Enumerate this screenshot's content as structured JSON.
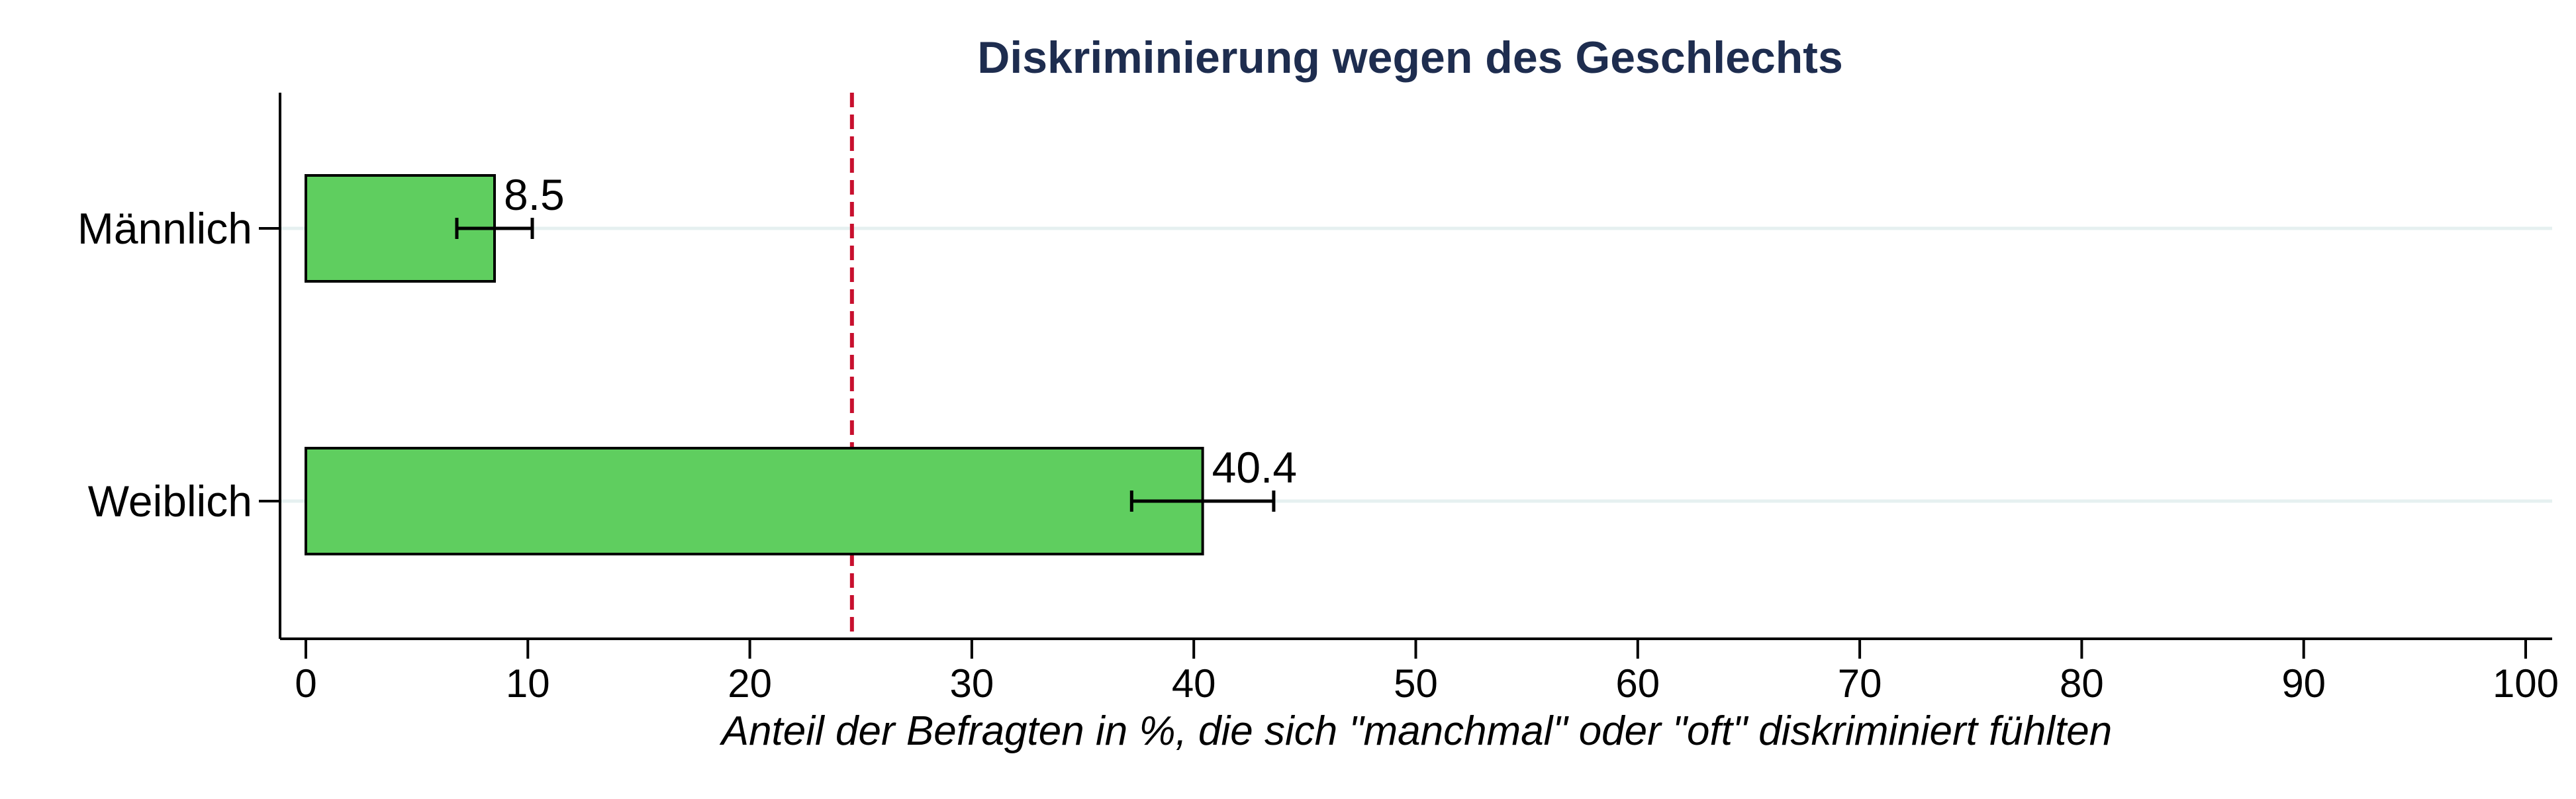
{
  "chart_data": {
    "type": "bar",
    "orientation": "horizontal",
    "title": "Diskriminierung wegen des Geschlechts",
    "xlabel": "Anteil der Befragten in %, die sich \"manchmal\" oder \"oft\" diskriminiert fühlten",
    "ylabel": "",
    "categories": [
      "Männlich",
      "Weiblich"
    ],
    "values": [
      8.5,
      40.4
    ],
    "value_labels": [
      "8.5",
      "40.4"
    ],
    "error_bars": [
      {
        "low": 6.8,
        "high": 10.2
      },
      {
        "low": 37.2,
        "high": 43.6
      }
    ],
    "reference_line": {
      "x": 24.6,
      "style": "dashed"
    },
    "xlim": [
      0,
      100
    ],
    "xticks": [
      0,
      10,
      20,
      30,
      40,
      50,
      60,
      70,
      80,
      90,
      100
    ],
    "xtick_labels": [
      "0",
      "10",
      "20",
      "30",
      "40",
      "50",
      "60",
      "70",
      "80",
      "90",
      "100"
    ],
    "grid": "horizontal",
    "legend": "none",
    "colors": {
      "bar": "#5fce5f",
      "bar_edge": "#000000",
      "title": "#1e2d4f",
      "reference_line": "#c8102e",
      "grid": "#e6f0f0",
      "axis": "#000000"
    }
  }
}
